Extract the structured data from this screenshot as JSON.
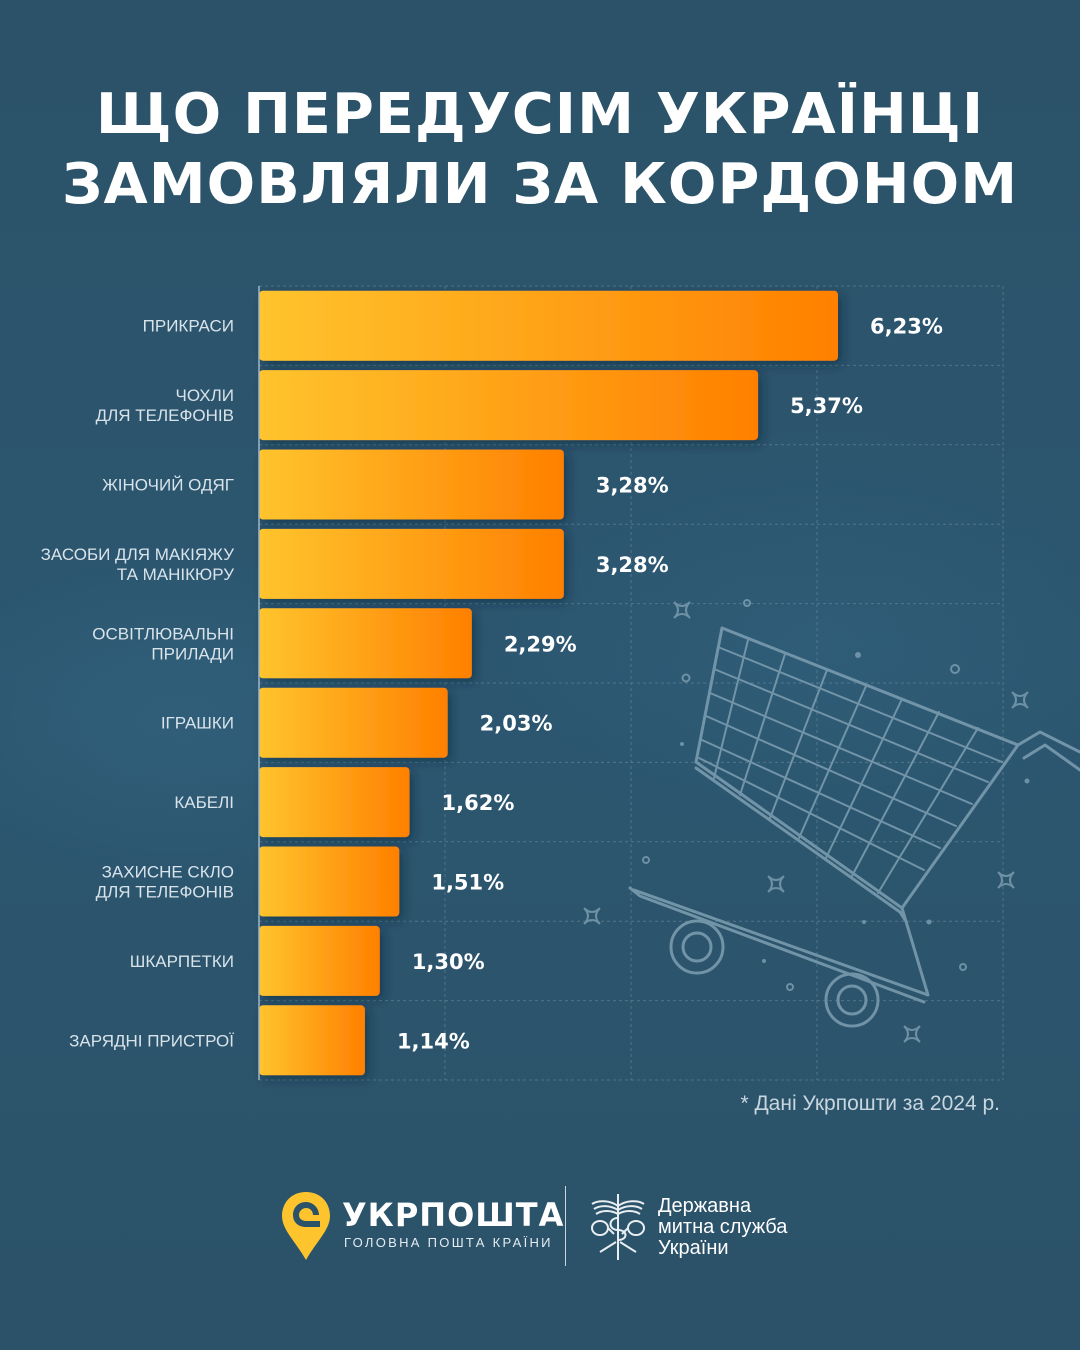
{
  "title": {
    "line1": "ЩО ПЕРЕДУСІМ УКРАЇНЦІ",
    "line2": "ЗАМОВЛЯЛИ ЗА КОРДОНОМ"
  },
  "chart_data": {
    "type": "bar",
    "orientation": "horizontal",
    "title": "ЩО ПЕРЕДУСІМ УКРАЇНЦІ ЗАМОВЛЯЛИ ЗА КОРДОНОМ",
    "xlabel": "",
    "ylabel": "",
    "unit": "%",
    "grid": true,
    "legend": "none",
    "categories": [
      [
        "ПРИКРАСИ"
      ],
      [
        "ЧОХЛИ",
        "ДЛЯ ТЕЛЕФОНІВ"
      ],
      [
        "ЖІНОЧИЙ ОДЯГ"
      ],
      [
        "ЗАСОБИ ДЛЯ МАКІЯЖУ",
        "ТА МАНІКЮРУ"
      ],
      [
        "ОСВІТЛЮВАЛЬНІ",
        "ПРИЛАДИ"
      ],
      [
        "ІГРАШКИ"
      ],
      [
        "КАБЕЛІ"
      ],
      [
        "ЗАХИСНЕ СКЛО",
        "ДЛЯ ТЕЛЕФОНІВ"
      ],
      [
        "ШКАРПЕТКИ"
      ],
      [
        "ЗАРЯДНІ ПРИСТРОЇ"
      ]
    ],
    "values": [
      6.23,
      5.37,
      3.28,
      3.28,
      2.29,
      2.03,
      1.62,
      1.51,
      1.3,
      1.14
    ],
    "value_labels": [
      "6,23%",
      "5,37%",
      "3,28%",
      "3,28%",
      "2,29%",
      "2,03%",
      "1,62%",
      "1,51%",
      "1,30%",
      "1,14%"
    ],
    "xlim": [
      0,
      8
    ],
    "bar_gradient": [
      "#ffc42e",
      "#ff8000"
    ]
  },
  "footnote": "* Дані Укрпошти за 2024 р.",
  "footer": {
    "ukrposhta_name": "УКРПОШТА",
    "ukrposhta_tagline": "ГОЛОВНА ПОШТА КРАЇНИ",
    "customs_line1": "Державна",
    "customs_line2": "митна служба",
    "customs_line3": "України"
  },
  "colors": {
    "background": "#2b5268",
    "accent_yellow": "#ffc42e",
    "accent_orange": "#ff8000",
    "text": "#ffffff"
  }
}
